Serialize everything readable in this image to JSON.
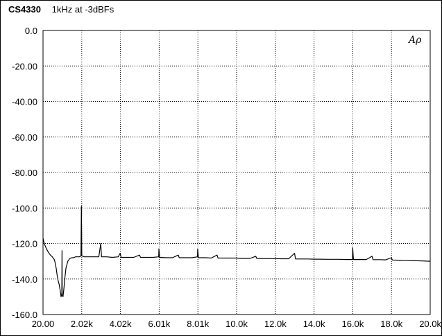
{
  "header": {
    "model": "CS4330",
    "description": "1kHz at  -3dBFs"
  },
  "logo": "Aρ",
  "chart_data": {
    "type": "line",
    "title": "CS4330  1kHz at  -3dBFs",
    "xlabel": "",
    "ylabel": "",
    "xlim": [
      20,
      20000
    ],
    "ylim": [
      -160,
      0
    ],
    "x_ticks": [
      20,
      2018,
      4016,
      6014,
      8012,
      10010,
      12008,
      14006,
      16004,
      18002,
      20000
    ],
    "x_tick_labels": [
      "20.00",
      "2.02k",
      "4.02k",
      "6.01k",
      "8.01k",
      "10.0k",
      "12.0k",
      "14.0k",
      "16.0k",
      "18.0k",
      "20.0k"
    ],
    "y_ticks": [
      0,
      -20,
      -40,
      -60,
      -80,
      -100,
      -120,
      -140,
      -160
    ],
    "y_tick_labels": [
      "0.0",
      "-20.00",
      "-40.00",
      "-60.00",
      "-80.00",
      "-100.0",
      "-120.0",
      "-140.0",
      "-160.0"
    ],
    "grid": true,
    "legend": "none",
    "series": [
      {
        "color": "#000000",
        "points": [
          [
            20,
            -117
          ],
          [
            60,
            -119
          ],
          [
            120,
            -121
          ],
          [
            200,
            -123
          ],
          [
            300,
            -125
          ],
          [
            400,
            -126.5
          ],
          [
            500,
            -127.5
          ],
          [
            600,
            -129
          ],
          [
            650,
            -131
          ],
          [
            700,
            -134
          ],
          [
            750,
            -138
          ],
          [
            800,
            -141
          ],
          [
            850,
            -143
          ],
          [
            900,
            -146
          ],
          [
            950,
            -150
          ],
          [
            990,
            -148
          ],
          [
            1000,
            -124
          ],
          [
            1010,
            -149
          ],
          [
            1050,
            -150
          ],
          [
            1100,
            -145
          ],
          [
            1150,
            -139
          ],
          [
            1200,
            -134
          ],
          [
            1300,
            -130
          ],
          [
            1400,
            -128.5
          ],
          [
            1500,
            -128
          ],
          [
            1600,
            -128
          ],
          [
            1700,
            -127.5
          ],
          [
            1800,
            -127.5
          ],
          [
            1900,
            -127.5
          ],
          [
            1980,
            -127
          ],
          [
            2000,
            -99
          ],
          [
            2020,
            -127
          ],
          [
            2150,
            -127.5
          ],
          [
            2300,
            -127.5
          ],
          [
            2500,
            -127.5
          ],
          [
            2700,
            -127.5
          ],
          [
            2900,
            -127.5
          ],
          [
            3000,
            -120
          ],
          [
            3040,
            -127.5
          ],
          [
            3300,
            -127.5
          ],
          [
            3600,
            -127.8
          ],
          [
            3900,
            -127.5
          ],
          [
            4000,
            -125.5
          ],
          [
            4050,
            -127.8
          ],
          [
            4400,
            -127.8
          ],
          [
            4700,
            -127.8
          ],
          [
            5000,
            -126.5
          ],
          [
            5050,
            -127.8
          ],
          [
            5400,
            -127.8
          ],
          [
            5700,
            -127.8
          ],
          [
            5990,
            -127.5
          ],
          [
            6000,
            -123
          ],
          [
            6040,
            -127.8
          ],
          [
            6400,
            -128
          ],
          [
            6700,
            -128
          ],
          [
            7000,
            -126.5
          ],
          [
            7050,
            -128
          ],
          [
            7400,
            -128
          ],
          [
            7700,
            -128
          ],
          [
            7990,
            -127.5
          ],
          [
            8000,
            -123
          ],
          [
            8040,
            -128
          ],
          [
            8400,
            -128
          ],
          [
            8700,
            -128.2
          ],
          [
            9000,
            -126.5
          ],
          [
            9050,
            -128.2
          ],
          [
            9400,
            -128.2
          ],
          [
            9700,
            -128.2
          ],
          [
            10000,
            -128.2
          ],
          [
            10300,
            -128.4
          ],
          [
            10700,
            -128.4
          ],
          [
            11000,
            -127.2
          ],
          [
            11050,
            -128.4
          ],
          [
            11400,
            -128.5
          ],
          [
            11700,
            -128.5
          ],
          [
            12000,
            -128.5
          ],
          [
            12300,
            -128.6
          ],
          [
            12700,
            -128.6
          ],
          [
            13000,
            -125.5
          ],
          [
            13050,
            -128.7
          ],
          [
            13400,
            -128.7
          ],
          [
            13700,
            -128.7
          ],
          [
            14000,
            -128.8
          ],
          [
            14300,
            -128.8
          ],
          [
            14700,
            -128.9
          ],
          [
            15000,
            -128.9
          ],
          [
            15300,
            -128.9
          ],
          [
            15700,
            -129
          ],
          [
            15990,
            -129
          ],
          [
            16000,
            -122.5
          ],
          [
            16040,
            -129
          ],
          [
            16400,
            -129
          ],
          [
            16700,
            -129
          ],
          [
            17000,
            -127.2
          ],
          [
            17050,
            -129.1
          ],
          [
            17400,
            -129.1
          ],
          [
            17700,
            -129.2
          ],
          [
            18000,
            -128
          ],
          [
            18050,
            -129.3
          ],
          [
            18400,
            -129.4
          ],
          [
            18700,
            -129.5
          ],
          [
            19000,
            -129.6
          ],
          [
            19300,
            -129.7
          ],
          [
            19600,
            -129.8
          ],
          [
            20000,
            -130
          ]
        ]
      }
    ]
  }
}
